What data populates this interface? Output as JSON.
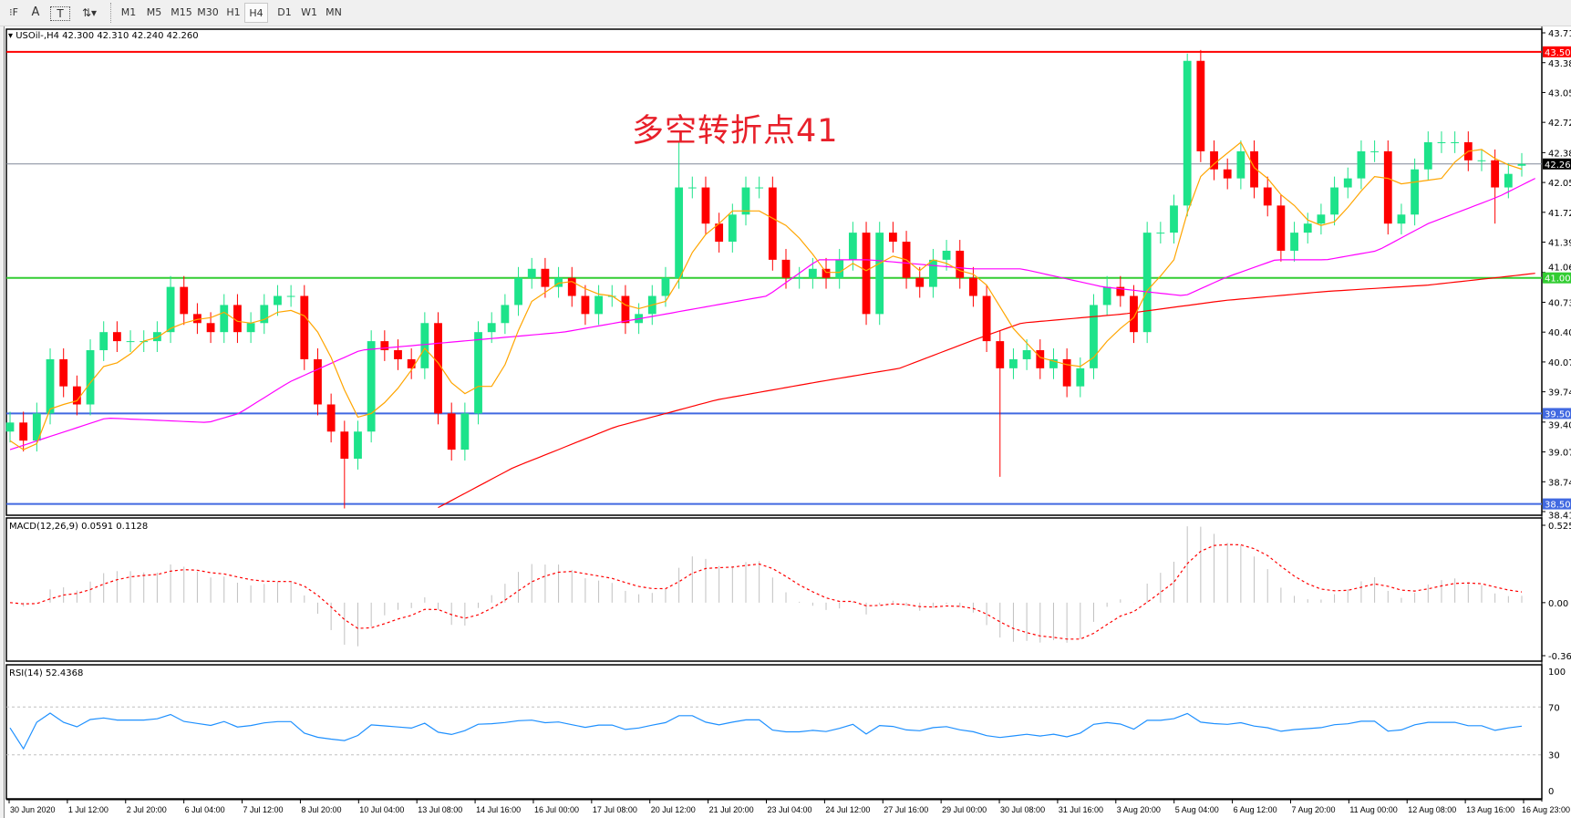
{
  "toolbar": {
    "tools": [
      {
        "name": "period-separator-icon",
        "glyph": "⁝F"
      },
      {
        "name": "text-tool-icon",
        "glyph": "A"
      },
      {
        "name": "text-label-tool-icon",
        "glyph": "T"
      },
      {
        "name": "arrows-tool-icon",
        "glyph": "⇅▾"
      }
    ],
    "timeframes": [
      "M1",
      "M5",
      "M15",
      "M30",
      "H1",
      "H4",
      "D1",
      "W1",
      "MN"
    ],
    "active_timeframe": "H4"
  },
  "main": {
    "info_label": "USOil-,H4  42.300 42.310 42.240 42.260",
    "annotation": "多空转折点41",
    "price_ticks": [
      "43.710",
      "43.380",
      "43.050",
      "42.720",
      "42.385",
      "42.055",
      "41.725",
      "41.395",
      "41.060",
      "40.730",
      "40.400",
      "40.070",
      "39.740",
      "39.405",
      "39.075",
      "38.745",
      "38.415"
    ],
    "hlines": [
      {
        "price": 43.5,
        "label": "43.500",
        "color": "#ff0000"
      },
      {
        "price": 42.26,
        "label": "42.260",
        "color": "#808898",
        "tag_color": "#000000"
      },
      {
        "price": 41.0,
        "label": "41.000",
        "color": "#32cd32"
      },
      {
        "price": 39.5,
        "label": "39.500",
        "color": "#4169e1"
      },
      {
        "price": 38.5,
        "label": "38.500",
        "color": "#4169e1"
      }
    ]
  },
  "macd": {
    "label": "MACD(12,26,9) 0.0591 0.1128",
    "ticks": [
      "0.5257",
      "0.00",
      "-0.3603"
    ],
    "range": [
      -0.3603,
      0.5257
    ]
  },
  "rsi": {
    "label": "RSI(14) 52.4368",
    "ticks": [
      "100",
      "70",
      "30",
      "0"
    ],
    "levels": [
      70,
      30
    ]
  },
  "time_axis": [
    "30 Jun 2020",
    "1 Jul 12:00",
    "2 Jul 20:00",
    "6 Jul 04:00",
    "7 Jul 12:00",
    "8 Jul 20:00",
    "10 Jul 04:00",
    "13 Jul 08:00",
    "14 Jul 16:00",
    "16 Jul 00:00",
    "17 Jul 08:00",
    "20 Jul 12:00",
    "21 Jul 20:00",
    "23 Jul 04:00",
    "24 Jul 12:00",
    "27 Jul 16:00",
    "29 Jul 00:00",
    "30 Jul 08:00",
    "31 Jul 16:00",
    "3 Aug 20:00",
    "5 Aug 04:00",
    "6 Aug 12:00",
    "7 Aug 20:00",
    "11 Aug 00:00",
    "12 Aug 08:00",
    "13 Aug 16:00",
    "16 Aug 23:00"
  ],
  "colors": {
    "bull": "#1de38a",
    "bear": "#ff0000",
    "ma_fast": "#ffa500",
    "ma_mid": "#ff00ff",
    "ma_slow": "#ff0000",
    "macd_hist": "#c0c0c0",
    "macd_signal": "#ff0000",
    "rsi": "#1e90ff"
  },
  "chart_data": {
    "type": "candlestick",
    "symbol": "USOil-",
    "timeframe": "H4",
    "ylim": [
      38.415,
      43.71
    ],
    "close": [
      39.4,
      39.2,
      39.5,
      40.1,
      39.8,
      39.6,
      40.2,
      40.4,
      40.3,
      40.3,
      40.3,
      40.4,
      40.9,
      40.6,
      40.5,
      40.4,
      40.7,
      40.4,
      40.5,
      40.7,
      40.8,
      40.8,
      40.1,
      39.6,
      39.3,
      39.0,
      39.3,
      40.3,
      40.2,
      40.1,
      40.0,
      40.5,
      39.5,
      39.1,
      39.5,
      40.4,
      40.5,
      40.7,
      41.0,
      41.1,
      40.9,
      41.0,
      40.8,
      40.6,
      40.8,
      40.8,
      40.5,
      40.6,
      40.8,
      41.0,
      42.0,
      42.0,
      41.6,
      41.4,
      41.7,
      42.0,
      42.0,
      41.2,
      41.0,
      41.0,
      41.1,
      41.0,
      41.2,
      41.5,
      40.6,
      41.5,
      41.4,
      41.0,
      40.9,
      41.2,
      41.3,
      41.0,
      40.8,
      40.3,
      40.0,
      40.1,
      40.2,
      40.0,
      40.1,
      39.8,
      40.0,
      40.7,
      40.9,
      40.8,
      40.4,
      41.5,
      41.5,
      41.8,
      43.4,
      42.4,
      42.2,
      42.1,
      42.4,
      42.0,
      41.8,
      41.3,
      41.5,
      41.6,
      41.7,
      42.0,
      42.1,
      42.4,
      42.4,
      41.6,
      41.7,
      42.2,
      42.5,
      42.5,
      42.5,
      42.3,
      42.3,
      42.0,
      42.15,
      42.26
    ],
    "last_bar": {
      "open": 42.3,
      "high": 42.31,
      "low": 42.24,
      "close": 42.26
    },
    "extremes": [
      {
        "bar": 25,
        "low": 38.45
      },
      {
        "bar": 74,
        "low": 38.8
      },
      {
        "bar": 88,
        "high": 43.48
      },
      {
        "bar": 50,
        "high": 42.5
      },
      {
        "bar": 111,
        "low": 41.6
      }
    ],
    "ma_mid": [
      [
        0,
        39.1
      ],
      [
        7.2,
        39.45
      ],
      [
        14.8,
        39.4
      ],
      [
        17.1,
        39.5
      ],
      [
        20.9,
        39.85
      ],
      [
        26.2,
        40.2
      ],
      [
        33.8,
        40.3
      ],
      [
        41.4,
        40.4
      ],
      [
        49,
        40.6
      ],
      [
        56.6,
        40.8
      ],
      [
        60.4,
        41.2
      ],
      [
        64.2,
        41.2
      ],
      [
        71.8,
        41.1
      ],
      [
        75.6,
        41.1
      ],
      [
        81.7,
        40.9
      ],
      [
        87.8,
        40.8
      ],
      [
        90.8,
        41.0
      ],
      [
        94.6,
        41.2
      ],
      [
        98.4,
        41.2
      ],
      [
        102.2,
        41.3
      ],
      [
        106,
        41.6
      ],
      [
        111.3,
        41.9
      ],
      [
        114,
        42.1
      ]
    ],
    "ma_slow": [
      [
        31.5,
        38.42
      ],
      [
        37.6,
        38.9
      ],
      [
        45.2,
        39.35
      ],
      [
        52.8,
        39.65
      ],
      [
        60.4,
        39.85
      ],
      [
        66.5,
        40.0
      ],
      [
        71.8,
        40.3
      ],
      [
        75.6,
        40.5
      ],
      [
        83.2,
        40.6
      ],
      [
        90.8,
        40.75
      ],
      [
        98.4,
        40.85
      ],
      [
        106,
        40.92
      ],
      [
        114,
        41.05
      ]
    ]
  }
}
